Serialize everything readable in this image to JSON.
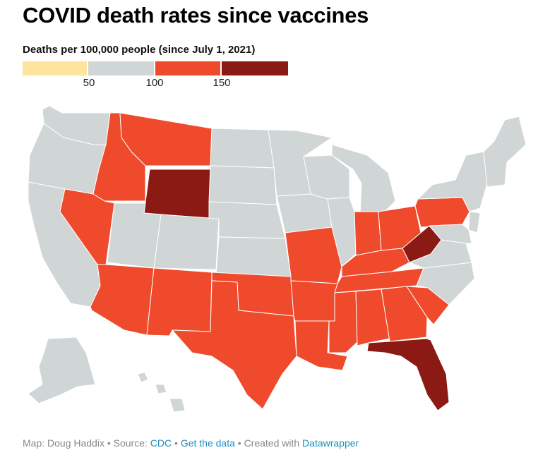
{
  "header": {
    "title": "COVID death rates since vaccines",
    "subtitle": "Deaths per 100,000 people (since July 1, 2021)"
  },
  "legend": {
    "bins": [
      {
        "color": "#fde59b"
      },
      {
        "color": "#d0d6d5"
      },
      {
        "color": "#ef4a2c"
      },
      {
        "color": "#8b1a14"
      }
    ],
    "ticks": [
      "50",
      "100",
      "150"
    ]
  },
  "colors": {
    "low": "#fde59b",
    "mid": "#d0d6d5",
    "high": "#ef4a2c",
    "highest": "#8b1a14",
    "link": "#1d8fc2",
    "footer_text": "#888888"
  },
  "footer": {
    "map_credit": "Map: Doug Haddix",
    "source_prefix": "Source:",
    "source_link": "CDC",
    "data_link": "Get the data",
    "created_prefix": "Created with",
    "created_link": "Datawrapper",
    "separator": "•"
  }
}
